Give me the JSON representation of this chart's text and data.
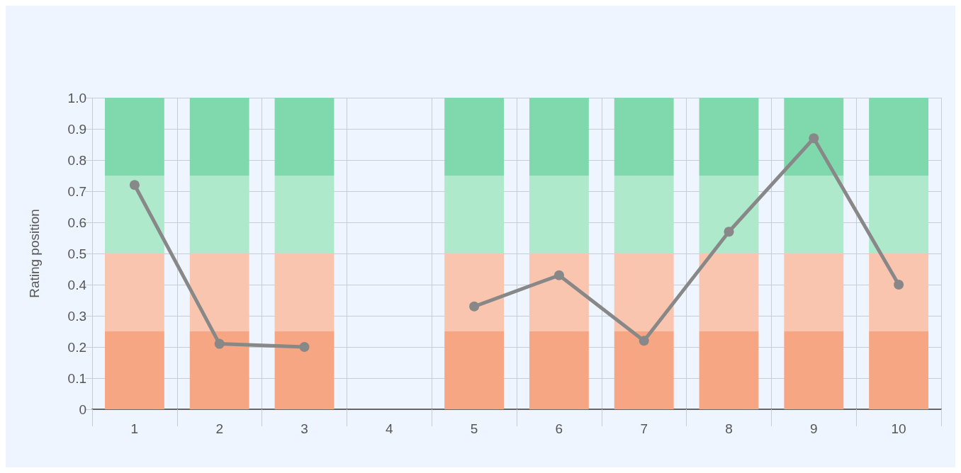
{
  "chart_data": {
    "type": "bar",
    "stacked": true,
    "ylabel": "Rating position",
    "categories": [
      "1",
      "2",
      "3",
      "4",
      "5",
      "6",
      "7",
      "8",
      "9",
      "10"
    ],
    "series": [
      {
        "color": "#f7a684",
        "values": [
          0.25,
          0.25,
          0.25,
          null,
          0.25,
          0.25,
          0.25,
          0.25,
          0.25,
          0.25
        ]
      },
      {
        "color": "#f9c5af",
        "values": [
          0.25,
          0.25,
          0.25,
          null,
          0.25,
          0.25,
          0.25,
          0.25,
          0.25,
          0.25
        ]
      },
      {
        "color": "#aee9cc",
        "values": [
          0.25,
          0.25,
          0.25,
          null,
          0.25,
          0.25,
          0.25,
          0.25,
          0.25,
          0.25
        ]
      },
      {
        "color": "#80d9ad",
        "values": [
          0.25,
          0.25,
          0.25,
          null,
          0.25,
          0.25,
          0.25,
          0.25,
          0.25,
          0.25
        ]
      },
      {
        "type": "line",
        "color": "#888888",
        "values": [
          0.72,
          0.21,
          0.2,
          null,
          0.33,
          0.43,
          0.22,
          0.57,
          0.87,
          0.4
        ]
      }
    ],
    "ylim": [
      0,
      1
    ],
    "yticks": [
      0,
      0.1,
      0.2,
      0.3,
      0.4,
      0.5,
      0.6,
      0.7,
      0.8,
      0.9,
      {
        "value": 1,
        "label": "1.0"
      }
    ],
    "grid": true,
    "marker": "circle"
  }
}
